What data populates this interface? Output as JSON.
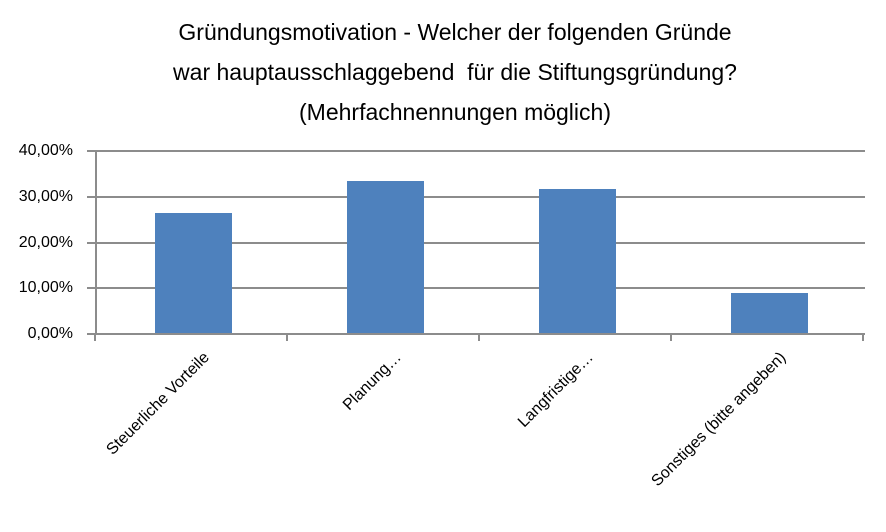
{
  "title": {
    "line1": "Gründungsmotivation - Welcher der folgenden Gründe",
    "line2": "war hauptausschlaggebend  für die Stiftungsgründung?",
    "line3": "(Mehrfachnennungen möglich)"
  },
  "chart_data": {
    "type": "bar",
    "title": "Gründungsmotivation - Welcher der folgenden Gründe war hauptausschlaggebend für die Stiftungsgründung? (Mehrfachnennungen möglich)",
    "categories": [
      "Steuerliche Vorteile",
      "Planung…",
      "Langfristige…",
      "Sonstiges (bitte angeben)"
    ],
    "values": [
      26.32,
      33.33,
      31.58,
      8.77
    ],
    "xlabel": "",
    "ylabel": "",
    "ylim": [
      0,
      40
    ],
    "y_ticks": [
      {
        "value": 0,
        "label": "0,00%"
      },
      {
        "value": 10,
        "label": "10,00%"
      },
      {
        "value": 20,
        "label": "20,00%"
      },
      {
        "value": 30,
        "label": "30,00%"
      },
      {
        "value": 40,
        "label": "40,00%"
      }
    ],
    "grid": true,
    "legend": "none",
    "x_label_rotation_deg": 45,
    "colors": {
      "bar": "#4E81BD",
      "axis": "#8C8C8C",
      "text": "#000000",
      "background": "#FFFFFF"
    }
  }
}
